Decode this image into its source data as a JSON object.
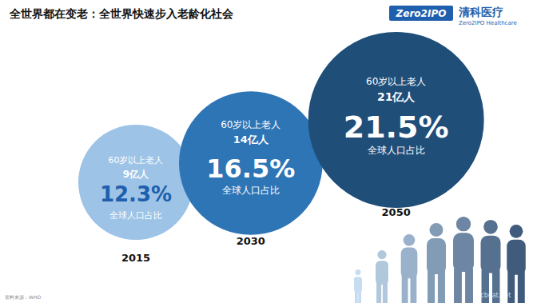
{
  "header": {
    "title": "全世界都在变老：全世界快速步入老龄化社会",
    "logo": "Zero2IPO",
    "brand": "清科医疗",
    "brand_en": "Zero2IPO Healthcare"
  },
  "chart_data": {
    "type": "bubble",
    "categories": [
      "2015",
      "2030",
      "2050"
    ],
    "label": "60岁以上老人",
    "sizes": [
      9,
      14,
      21
    ],
    "size_labels": [
      "9亿人",
      "14亿人",
      "21亿人"
    ],
    "values": [
      12.3,
      16.5,
      21.5
    ],
    "value_labels": [
      "12.3%",
      "16.5%",
      "21.5%"
    ],
    "value_name": "全球人口占比",
    "colors": [
      "#9dc3e6",
      "#2e75b6",
      "#1f4e79"
    ],
    "data_labels": true,
    "tick_labels": false
  },
  "source": "资料来源：WHO",
  "watermark": "vcbeat.net"
}
